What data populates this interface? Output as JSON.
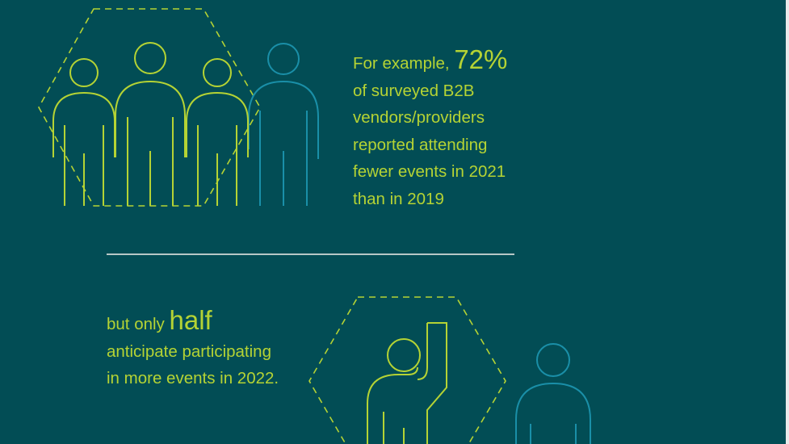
{
  "colors": {
    "background": "#024d55",
    "accent_green": "#b5d334",
    "accent_blue": "#1a8fa8",
    "divider": "#b7c7c6"
  },
  "stat1": {
    "prefix": "For example, ",
    "highlight": "72%",
    "lines": [
      "of surveyed B2B",
      "vendors/providers",
      "reported attending",
      "fewer events in 2021",
      "than in 2019"
    ]
  },
  "stat2": {
    "prefix": "but only ",
    "highlight": "half",
    "lines": [
      "anticipate participating",
      "in more events in 2022."
    ]
  },
  "icons": {
    "group": "people-group-icon",
    "raised_hand": "raised-hand-person-icon",
    "person": "person-outline-icon"
  }
}
